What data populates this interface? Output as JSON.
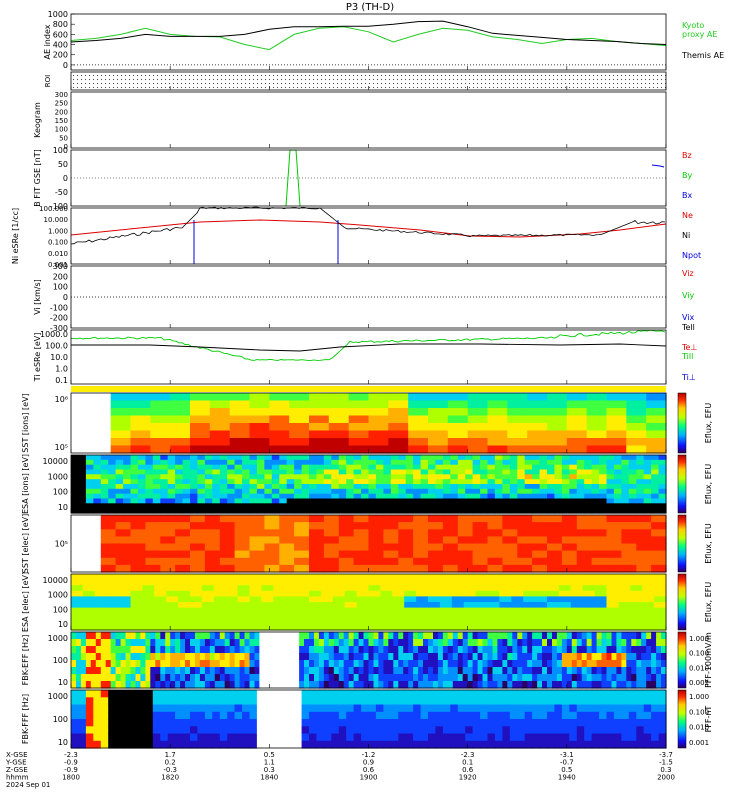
{
  "title": "P3 (TH-D)",
  "colors": {
    "black": "#000000",
    "red": "#dd0000",
    "green": "#00cc00",
    "blue": "#0000dd",
    "kyoto": "#22cc22"
  },
  "time_axis": {
    "ticks": [
      "1800",
      "1820",
      "1840",
      "1900",
      "1920",
      "1940",
      "2000"
    ],
    "rows": [
      {
        "label": "X-GSE",
        "values": [
          "-2.3",
          "1.7",
          "0.5",
          "-1.2",
          "-2.3",
          "-3.1",
          "-3.7"
        ]
      },
      {
        "label": "Y-GSE",
        "values": [
          "-0.9",
          "0.2",
          "1.1",
          "0.9",
          "0.1",
          "-0.7",
          "-1.5"
        ]
      },
      {
        "label": "Z-GSE",
        "values": [
          "-0.9",
          "-0.3",
          "0.3",
          "0.6",
          "0.6",
          "0.5",
          "0.3"
        ]
      },
      {
        "label": "hhmm",
        "values": [
          "1800",
          "1820",
          "1840",
          "1900",
          "1920",
          "1940",
          "2000"
        ]
      }
    ],
    "date": "2024 Sep 01"
  },
  "chart_data": [
    {
      "type": "line",
      "ylabel": "AE index",
      "ylim": [
        -100,
        1000
      ],
      "yticks": [
        "1000",
        "800",
        "600",
        "400",
        "200",
        "0"
      ],
      "legend": [
        "Kyoto proxy AE",
        "Themis AE"
      ],
      "x": [
        1800,
        1805,
        1810,
        1815,
        1820,
        1825,
        1830,
        1835,
        1840,
        1845,
        1850,
        1855,
        1900,
        1905,
        1910,
        1915,
        1920,
        1925,
        1930,
        1935,
        1940,
        1945,
        1950,
        1955,
        2000
      ],
      "series": [
        {
          "name": "Kyoto proxy AE",
          "values": [
            480,
            520,
            600,
            720,
            600,
            560,
            550,
            400,
            300,
            600,
            720,
            750,
            650,
            450,
            600,
            720,
            680,
            550,
            500,
            420,
            500,
            520,
            460,
            420,
            380
          ]
        },
        {
          "name": "Themis AE",
          "values": [
            450,
            480,
            520,
            600,
            560,
            560,
            560,
            600,
            700,
            750,
            750,
            760,
            760,
            800,
            850,
            860,
            750,
            620,
            580,
            540,
            500,
            480,
            460,
            420,
            400
          ]
        }
      ]
    },
    {
      "type": "line",
      "ylabel": "ROI",
      "yticks": [],
      "series": []
    },
    {
      "type": "heatmap",
      "ylabel": "Keogram",
      "yticks": [
        "300",
        "250",
        "200",
        "150",
        "100",
        "50",
        "0"
      ]
    },
    {
      "type": "line",
      "ylabel": "B FIT GSE [nT]",
      "ylim": [
        -100,
        100
      ],
      "yticks": [
        "100",
        "50",
        "0",
        "-50",
        "-100"
      ],
      "legend": [
        "Bz",
        "By",
        "Bx"
      ]
    },
    {
      "type": "line",
      "ylabel": "Ni eSRe [1/cc]",
      "ylim": [
        0.001,
        100
      ],
      "yticks": [
        "100.000",
        "10.000",
        "1.000",
        "0.100",
        "0.010",
        "0.001"
      ],
      "legend": [
        "Ne",
        "Ni",
        "Npot"
      ]
    },
    {
      "type": "line",
      "ylabel": "Vi [km/s]",
      "ylim": [
        -300,
        300
      ],
      "yticks": [
        "300",
        "200",
        "100",
        "0",
        "-100",
        "-200",
        "-300"
      ],
      "legend": [
        "Viz",
        "Viy",
        "Vix"
      ]
    },
    {
      "type": "line",
      "ylabel": "Ti eSRe [eV]",
      "ylim": [
        0.1,
        1000
      ],
      "yticks": [
        "1000.0",
        "100.0",
        "10.0",
        "1.0",
        "0.1"
      ],
      "legend": [
        "Tell",
        "Te⊥",
        "Till",
        "Ti⊥"
      ]
    },
    {
      "type": "heatmap",
      "ylabel": "SST [ions] [eV]",
      "yticks": [
        "10⁶",
        "10⁵"
      ],
      "colorbar": "Eflux, EFU"
    },
    {
      "type": "heatmap",
      "ylabel": "ESA [ions] [eV]",
      "yticks": [
        "10000",
        "1000",
        "100",
        "10"
      ],
      "colorbar": "Eflux, EFU"
    },
    {
      "type": "heatmap",
      "ylabel": "SST [elec] [eV]",
      "yticks": [
        "10⁵"
      ],
      "colorbar": "Eflux, EFU"
    },
    {
      "type": "heatmap",
      "ylabel": "ESA [elec] [eV]",
      "yticks": [
        "10000",
        "1000",
        "100",
        "10"
      ],
      "colorbar": "Eflux, EFU"
    },
    {
      "type": "heatmap",
      "ylabel": "FBK-EFF [Hz]",
      "yticks": [
        "1000",
        "100",
        "10"
      ],
      "colorbar": "FFF-100mV/m",
      "colorbar_ticks": [
        "1.000",
        "0.100",
        "0.010",
        "0.001"
      ]
    },
    {
      "type": "heatmap",
      "ylabel": "FBK-FFF [Hz]",
      "yticks": [
        "1000",
        "100",
        "10"
      ],
      "colorbar": "FFF-nT",
      "colorbar_ticks": [
        "1.000",
        "0.100",
        "0.010",
        "0.001"
      ]
    }
  ],
  "labels": {
    "kyoto": "Kyoto\nproxy AE",
    "themis": "Themis AE",
    "bz": "Bz",
    "by": "By",
    "bx": "Bx",
    "ne": "Ne",
    "ni": "Ni",
    "npot": "Npot",
    "viz": "Viz",
    "viy": "Viy",
    "vix": "Vix",
    "tell": "Tell",
    "teperp": "Te⊥",
    "till": "Till",
    "tiperp": "Ti⊥",
    "eflux": "Eflux, EFU",
    "fff_mv": "FFF-100mV/m",
    "fff_nt": "FFF-nT"
  }
}
